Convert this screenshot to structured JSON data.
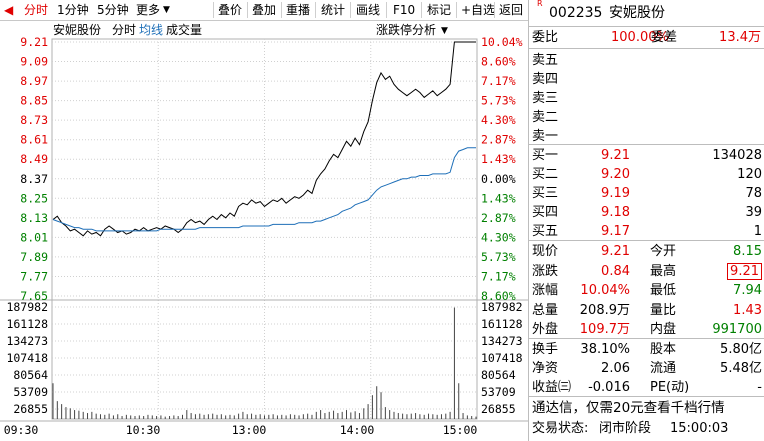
{
  "toolbar": {
    "left_icon": "left-arrow-icon",
    "tabs": [
      "分时",
      "1分钟",
      "5分钟",
      "更多"
    ],
    "more_chevron": "chevron-down-icon",
    "buttons": [
      "叠价",
      "叠加",
      "重播",
      "统计",
      "画线",
      "F10",
      "标记",
      "+自选",
      "返回"
    ]
  },
  "chart": {
    "legend": {
      "name": "安妮股份",
      "tab1": "分时",
      "tab2": "均线",
      "tab3": "成交量"
    },
    "analysis_button": "涨跌停分析",
    "analysis_chevron": "chevron-down-icon",
    "price_ticks": [
      "9.21",
      "9.09",
      "8.97",
      "8.85",
      "8.73",
      "8.61",
      "8.49",
      "8.37",
      "8.25",
      "8.13",
      "8.01",
      "7.89",
      "7.77",
      "7.65"
    ],
    "pct_ticks": [
      "10.04%",
      "8.60%",
      "7.17%",
      "5.73%",
      "4.30%",
      "2.87%",
      "1.43%",
      "0.00%",
      "1.43%",
      "2.87%",
      "4.30%",
      "5.73%",
      "7.17%",
      "8.60%"
    ],
    "volume_ticks": [
      "187982",
      "161128",
      "134273",
      "107418",
      "80564",
      "53709",
      "26855"
    ],
    "time_ticks": [
      "09:30",
      "10:30",
      "13:00",
      "14:00",
      "15:00"
    ]
  },
  "chart_data": {
    "type": "line",
    "prev_close": 8.37,
    "ylim": [
      7.65,
      9.21
    ],
    "series": [
      {
        "values": [
          8.12,
          8.14,
          8.1,
          8.08,
          8.05,
          8.06,
          8.04,
          8.02,
          8.05,
          8.03,
          8.04,
          8.02,
          8.06,
          8.08,
          8.06,
          8.04,
          8.05,
          8.03,
          8.04,
          8.06,
          8.05,
          8.07,
          8.05,
          8.06,
          8.07,
          8.06,
          8.08,
          8.07,
          8.06,
          8.04,
          8.06,
          8.1,
          8.12,
          8.1,
          8.11,
          8.09,
          8.12,
          8.14,
          8.12,
          8.15,
          8.13,
          8.16,
          8.14,
          8.2,
          8.22,
          8.21,
          8.24,
          8.22,
          8.23,
          8.2,
          8.22,
          8.24,
          8.23,
          8.25,
          8.22,
          8.24,
          8.26,
          8.25,
          8.27,
          8.3,
          8.28,
          8.36,
          8.4,
          8.43,
          8.48,
          8.52,
          8.5,
          8.55,
          8.6,
          8.57,
          8.62,
          8.58,
          8.66,
          8.72,
          8.85,
          8.96,
          9.02,
          8.98,
          9.0,
          8.95,
          8.92,
          8.9,
          8.88,
          8.9,
          8.92,
          8.9,
          8.87,
          8.89,
          8.91,
          8.88,
          8.9,
          8.92,
          8.95,
          9.21,
          9.21,
          9.21,
          9.21,
          9.21,
          9.21
        ]
      },
      {
        "values": [
          8.12,
          8.11,
          8.1,
          8.09,
          8.08,
          8.07,
          8.07,
          8.06,
          8.06,
          8.06,
          8.05,
          8.05,
          8.05,
          8.05,
          8.05,
          8.05,
          8.05,
          8.05,
          8.05,
          8.05,
          8.05,
          8.05,
          8.05,
          8.05,
          8.05,
          8.06,
          8.06,
          8.06,
          8.06,
          8.06,
          8.06,
          8.06,
          8.06,
          8.06,
          8.07,
          8.07,
          8.07,
          8.07,
          8.07,
          8.07,
          8.07,
          8.07,
          8.07,
          8.07,
          8.08,
          8.08,
          8.08,
          8.08,
          8.08,
          8.08,
          8.08,
          8.09,
          8.09,
          8.09,
          8.09,
          8.09,
          8.09,
          8.1,
          8.1,
          8.1,
          8.1,
          8.11,
          8.11,
          8.12,
          8.13,
          8.14,
          8.15,
          8.17,
          8.18,
          8.19,
          8.21,
          8.22,
          8.23,
          8.24,
          8.27,
          8.3,
          8.32,
          8.33,
          8.34,
          8.35,
          8.36,
          8.37,
          8.37,
          8.38,
          8.38,
          8.39,
          8.39,
          8.39,
          8.4,
          8.4,
          8.4,
          8.4,
          8.41,
          8.5,
          8.54,
          8.55,
          8.56,
          8.56,
          8.56
        ]
      }
    ],
    "volume": [
      60000,
      30000,
      25000,
      20000,
      18000,
      15000,
      14000,
      12000,
      10000,
      12000,
      9000,
      8000,
      7000,
      9000,
      6000,
      8000,
      5000,
      7000,
      6000,
      5000,
      6000,
      5000,
      7000,
      6000,
      5000,
      6000,
      4000,
      5000,
      6000,
      5000,
      7000,
      15000,
      10000,
      8000,
      9000,
      7000,
      8000,
      9000,
      7000,
      8000,
      6000,
      7000,
      6000,
      9000,
      12000,
      8000,
      9000,
      7000,
      8000,
      6000,
      7000,
      8000,
      6000,
      7000,
      6000,
      8000,
      7000,
      6000,
      8000,
      9000,
      7000,
      12000,
      15000,
      10000,
      12000,
      14000,
      10000,
      12000,
      15000,
      11000,
      13000,
      10000,
      18000,
      25000,
      40000,
      55000,
      45000,
      20000,
      15000,
      12000,
      10000,
      9000,
      8000,
      9000,
      10000,
      8000,
      7000,
      9000,
      8000,
      7000,
      8000,
      9000,
      12000,
      187000,
      60000,
      10000,
      6000,
      5000,
      4000
    ]
  },
  "quote": {
    "badge": "R",
    "code": "002235",
    "name": "安妮股份",
    "wei_bi_label": "委比",
    "wei_bi_value": "100.00%",
    "wei_cha_label": "委差",
    "wei_cha_value": "13.4万",
    "sell": [
      {
        "label": "卖五",
        "price": "",
        "vol": ""
      },
      {
        "label": "卖四",
        "price": "",
        "vol": ""
      },
      {
        "label": "卖三",
        "price": "",
        "vol": ""
      },
      {
        "label": "卖二",
        "price": "",
        "vol": ""
      },
      {
        "label": "卖一",
        "price": "",
        "vol": ""
      }
    ],
    "buy": [
      {
        "label": "买一",
        "price": "9.21",
        "vol": "134028"
      },
      {
        "label": "买二",
        "price": "9.20",
        "vol": "120"
      },
      {
        "label": "买三",
        "price": "9.19",
        "vol": "78"
      },
      {
        "label": "买四",
        "price": "9.18",
        "vol": "39"
      },
      {
        "label": "买五",
        "price": "9.17",
        "vol": "1"
      }
    ],
    "stats": [
      {
        "l1": "现价",
        "v1": "9.21",
        "l2": "今开",
        "v2": "8.15",
        "c1": "red",
        "c2": "green"
      },
      {
        "l1": "涨跌",
        "v1": "0.84",
        "l2": "最高",
        "v2": "9.21",
        "c1": "red",
        "c2": "red"
      },
      {
        "l1": "涨幅",
        "v1": "10.04%",
        "l2": "最低",
        "v2": "7.94",
        "c1": "red",
        "c2": "green"
      },
      {
        "l1": "总量",
        "v1": "208.9万",
        "l2": "量比",
        "v2": "1.43",
        "c1": "blk",
        "c2": "red"
      },
      {
        "l1": "外盘",
        "v1": "109.7万",
        "l2": "内盘",
        "v2": "991700",
        "c1": "red",
        "c2": "green"
      }
    ],
    "stats2": [
      {
        "l1": "换手",
        "v1": "38.10%",
        "l2": "股本",
        "v2": "5.80亿"
      },
      {
        "l1": "净资",
        "v1": "2.06",
        "l2": "流通",
        "v2": "5.48亿"
      },
      {
        "l1": "收益㈢",
        "v1": "-0.016",
        "l2": "PE(动)",
        "v2": "-"
      }
    ],
    "promo": "通达信，仅需20元查看千档行情",
    "status_label": "交易状态:",
    "status_value": "闭市阶段",
    "status_time": "15:00:03"
  },
  "colors": {
    "up": "#e00000",
    "down": "#008000",
    "avg": "#1e6fb8",
    "grid": "#d0d0d0",
    "price_line": "#000000"
  }
}
